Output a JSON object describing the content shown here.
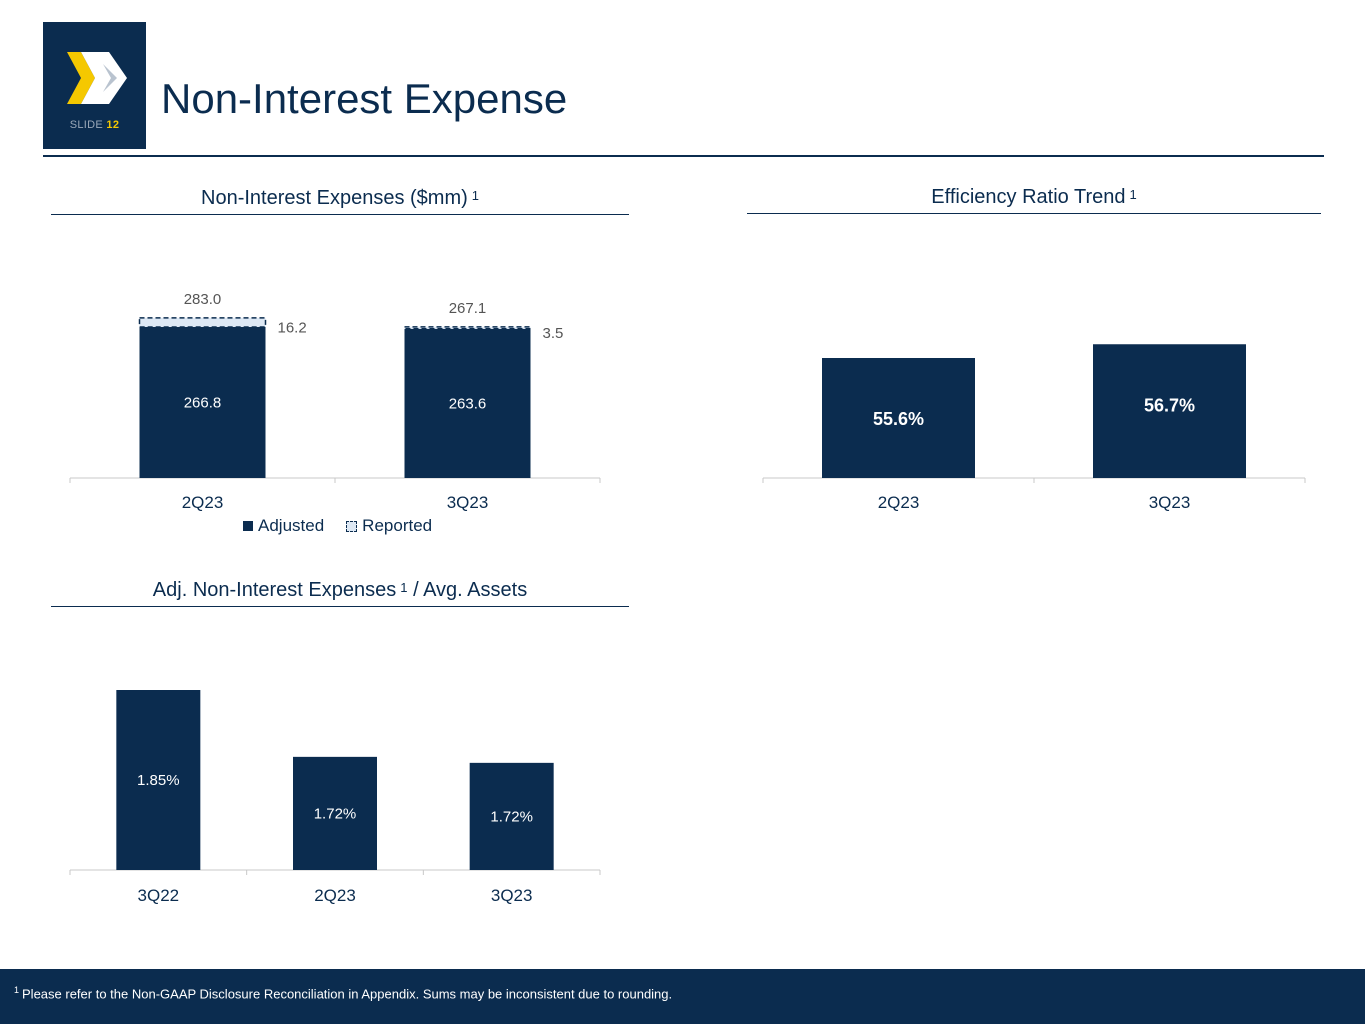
{
  "header": {
    "slide_label": "SLIDE",
    "slide_number": "12",
    "title": "Non-Interest Expense"
  },
  "colors": {
    "navy": "#0b2c4f",
    "light_fill": "#dde8f4",
    "accent_yellow": "#f5c800",
    "logo_grey": "#b9c3cf"
  },
  "charts": {
    "nie": {
      "title": "Non-Interest Expenses ($mm)",
      "sup": "1"
    },
    "eff": {
      "title": "Efficiency Ratio Trend",
      "sup": "1"
    },
    "assets": {
      "title_pre": "Adj. Non-Interest Expenses",
      "sup": "1",
      "title_post": "/ Avg. Assets"
    }
  },
  "legend": {
    "adjusted": "Adjusted",
    "reported": "Reported"
  },
  "chart_data": [
    {
      "id": "nie",
      "type": "bar",
      "stacked": true,
      "title": "Non-Interest Expenses ($mm)",
      "categories": [
        "2Q23",
        "3Q23"
      ],
      "series": [
        {
          "name": "Adjusted",
          "values": [
            266.8,
            263.6
          ],
          "labels": [
            "266.8",
            "263.6"
          ]
        },
        {
          "name": "Reported",
          "values": [
            16.2,
            3.5
          ],
          "labels": [
            "16.2",
            "3.5"
          ]
        }
      ],
      "totals": [
        283.0,
        267.1
      ],
      "total_labels": [
        "283.0",
        "267.1"
      ],
      "ylim": [
        0,
        300
      ],
      "legend": "bottom"
    },
    {
      "id": "eff",
      "type": "bar",
      "title": "Efficiency Ratio Trend",
      "categories": [
        "2Q23",
        "3Q23"
      ],
      "values": [
        55.6,
        56.7
      ],
      "labels": [
        "55.6%",
        "56.7%"
      ],
      "ylim": [
        46,
        58
      ]
    },
    {
      "id": "assets",
      "type": "bar",
      "title": "Adj. Non-Interest Expenses / Avg. Assets",
      "categories": [
        "3Q22",
        "2Q23",
        "3Q23"
      ],
      "values": [
        1.85,
        1.72,
        1.72
      ],
      "labels": [
        "1.85%",
        "1.72%",
        "1.72%"
      ],
      "ylim": [
        1.5,
        1.9
      ]
    }
  ],
  "footer": {
    "sup": "1",
    "text": "Please refer to the Non-GAAP Disclosure Reconciliation in Appendix. Sums may be inconsistent due to rounding."
  }
}
